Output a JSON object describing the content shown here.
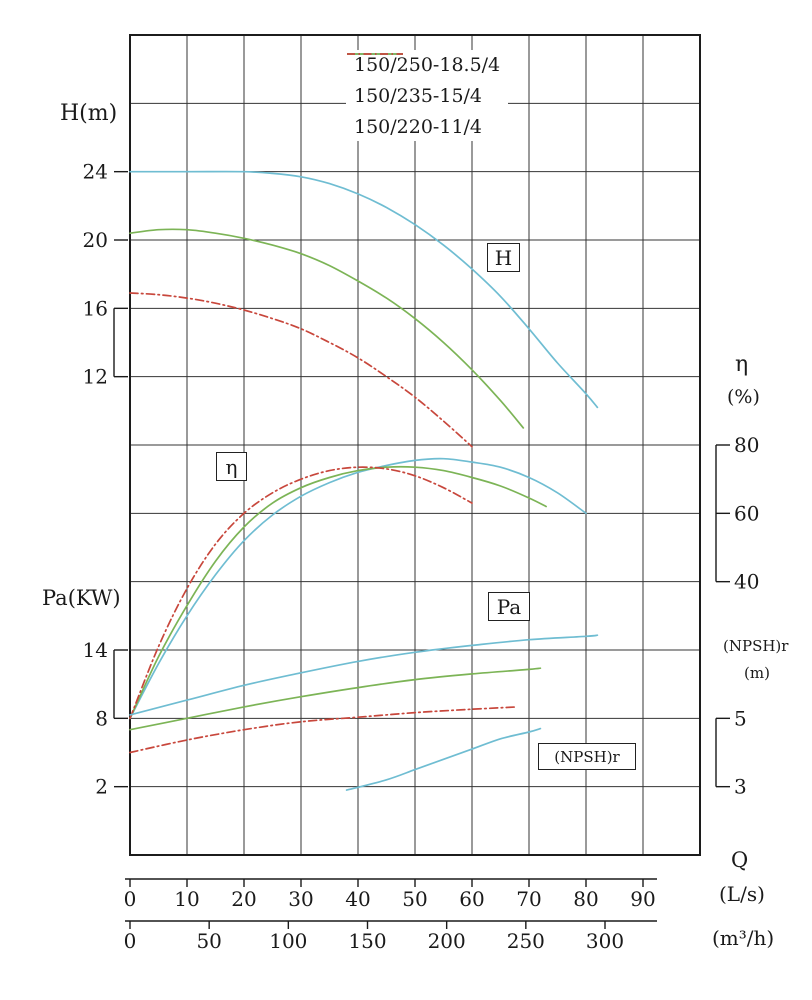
{
  "labels": {
    "h_axis": "H(m)",
    "pa_axis": "Pa(KW)",
    "eta": "η",
    "eta_unit": "(%)",
    "npshr": "(NPSH)r",
    "npsh_unit": "(m)",
    "q": "Q",
    "q_unit_ls": "(L/s)",
    "q_unit_m3h": "(m³/h)",
    "box_h": "H",
    "box_eta": "η",
    "box_pa": "Pa",
    "box_npshr": "(NPSH)r"
  },
  "legend": {
    "items": [
      {
        "label": "150/250-18.5/4",
        "color": "#6fbdd2",
        "dash": null
      },
      {
        "label": "150/235-15/4",
        "color": "#7cb456",
        "dash": null
      },
      {
        "label": "150/220-11/4",
        "color": "#c8473c",
        "dash": "8 3.5 1.5 3.5"
      }
    ]
  },
  "chart_data": {
    "type": "line",
    "legend_position": "top-center",
    "grid": {
      "rows": 12,
      "cols": 10
    },
    "x_axis": {
      "label": "Q",
      "max_ls": 100,
      "units": [
        {
          "name": "L/s",
          "to_ls": 1,
          "ticks": [
            0,
            10,
            20,
            30,
            40,
            50,
            60,
            70,
            80,
            90
          ]
        },
        {
          "name": "m³/h",
          "to_ls": 0.277778,
          "ticks": [
            0,
            50,
            100,
            150,
            200,
            250,
            300
          ]
        }
      ]
    },
    "y_axes": [
      {
        "id": "H",
        "label": "H(m)",
        "side": "left",
        "ticks": [
          24,
          20,
          16,
          12
        ],
        "top_value": 24,
        "top_div": 2,
        "units_per_div": 4,
        "bracket": [
          16,
          12
        ]
      },
      {
        "id": "eta",
        "label": "η(%)",
        "side": "right",
        "ticks": [
          80,
          60,
          40
        ],
        "top_value": 80,
        "top_div": 6,
        "units_per_div": 20,
        "bracket": [
          80,
          40
        ]
      },
      {
        "id": "Pa",
        "label": "Pa(KW)",
        "side": "left",
        "ticks": [
          14,
          8,
          2
        ],
        "top_value": 14,
        "top_div": 9,
        "units_per_div": 6,
        "bracket": [
          14,
          8
        ]
      },
      {
        "id": "NPSH",
        "label": "(NPSH)r (m)",
        "side": "right",
        "ticks": [
          5,
          3
        ],
        "top_value": 5,
        "top_div": 10,
        "units_per_div": 2,
        "bracket": [
          5,
          3
        ]
      }
    ],
    "series": [
      {
        "name": "H-150/250-18.5/4",
        "model": "150/250-18.5/4",
        "quantity": "H",
        "axis": "H",
        "color": "#6fbdd2",
        "dash": null,
        "points": [
          [
            0,
            24
          ],
          [
            10,
            24
          ],
          [
            20,
            24
          ],
          [
            25,
            23.9
          ],
          [
            30,
            23.7
          ],
          [
            35,
            23.3
          ],
          [
            40,
            22.7
          ],
          [
            45,
            21.9
          ],
          [
            50,
            20.9
          ],
          [
            55,
            19.7
          ],
          [
            60,
            18.3
          ],
          [
            65,
            16.7
          ],
          [
            70,
            14.8
          ],
          [
            75,
            12.8
          ],
          [
            80,
            11.0
          ],
          [
            82,
            10.2
          ]
        ]
      },
      {
        "name": "H-150/235-15/4",
        "model": "150/235-15/4",
        "quantity": "H",
        "axis": "H",
        "color": "#7cb456",
        "dash": null,
        "points": [
          [
            0,
            20.4
          ],
          [
            5,
            20.6
          ],
          [
            10,
            20.6
          ],
          [
            15,
            20.4
          ],
          [
            20,
            20.1
          ],
          [
            25,
            19.7
          ],
          [
            30,
            19.2
          ],
          [
            35,
            18.5
          ],
          [
            40,
            17.6
          ],
          [
            45,
            16.6
          ],
          [
            50,
            15.4
          ],
          [
            55,
            14.0
          ],
          [
            60,
            12.4
          ],
          [
            65,
            10.6
          ],
          [
            69,
            9.0
          ]
        ]
      },
      {
        "name": "H-150/220-11/4",
        "model": "150/220-11/4",
        "quantity": "H",
        "axis": "H",
        "color": "#c8473c",
        "dash": "8 3.5 1.5 3.5",
        "points": [
          [
            0,
            16.9
          ],
          [
            5,
            16.8
          ],
          [
            10,
            16.6
          ],
          [
            15,
            16.3
          ],
          [
            20,
            15.9
          ],
          [
            25,
            15.4
          ],
          [
            30,
            14.8
          ],
          [
            35,
            14.0
          ],
          [
            40,
            13.1
          ],
          [
            45,
            12.0
          ],
          [
            50,
            10.8
          ],
          [
            55,
            9.4
          ],
          [
            60,
            7.9
          ]
        ]
      },
      {
        "name": "eta-150/250-18.5/4",
        "model": "150/250-18.5/4",
        "quantity": "eta",
        "axis": "eta",
        "color": "#6fbdd2",
        "dash": null,
        "points": [
          [
            0,
            0
          ],
          [
            5,
            16
          ],
          [
            10,
            30
          ],
          [
            15,
            42
          ],
          [
            20,
            52
          ],
          [
            25,
            59.5
          ],
          [
            30,
            65
          ],
          [
            35,
            69
          ],
          [
            40,
            72
          ],
          [
            45,
            74
          ],
          [
            50,
            75.5
          ],
          [
            55,
            76
          ],
          [
            60,
            75
          ],
          [
            65,
            73.5
          ],
          [
            70,
            70.5
          ],
          [
            75,
            66
          ],
          [
            80,
            60
          ]
        ]
      },
      {
        "name": "eta-150/235-15/4",
        "model": "150/235-15/4",
        "quantity": "eta",
        "axis": "eta",
        "color": "#7cb456",
        "dash": null,
        "points": [
          [
            0,
            0
          ],
          [
            5,
            18
          ],
          [
            10,
            33
          ],
          [
            15,
            46
          ],
          [
            20,
            56
          ],
          [
            25,
            63
          ],
          [
            30,
            67.5
          ],
          [
            35,
            70.5
          ],
          [
            40,
            72.5
          ],
          [
            45,
            73.5
          ],
          [
            50,
            73.5
          ],
          [
            55,
            72.5
          ],
          [
            60,
            70.5
          ],
          [
            65,
            68
          ],
          [
            70,
            64.5
          ],
          [
            73,
            62
          ]
        ]
      },
      {
        "name": "eta-150/220-11/4",
        "model": "150/220-11/4",
        "quantity": "eta",
        "axis": "eta",
        "color": "#c8473c",
        "dash": "8 3.5 1.5 3.5",
        "points": [
          [
            0,
            0
          ],
          [
            5,
            21
          ],
          [
            10,
            38
          ],
          [
            15,
            51
          ],
          [
            20,
            60
          ],
          [
            25,
            66
          ],
          [
            30,
            70
          ],
          [
            35,
            72.5
          ],
          [
            40,
            73.5
          ],
          [
            45,
            73
          ],
          [
            50,
            71
          ],
          [
            55,
            67.5
          ],
          [
            60,
            63
          ]
        ]
      },
      {
        "name": "Pa-150/250-18.5/4",
        "model": "150/250-18.5/4",
        "quantity": "Pa",
        "axis": "Pa",
        "color": "#6fbdd2",
        "dash": null,
        "points": [
          [
            0,
            8.3
          ],
          [
            10,
            9.6
          ],
          [
            20,
            10.9
          ],
          [
            30,
            12.0
          ],
          [
            40,
            13.0
          ],
          [
            50,
            13.8
          ],
          [
            60,
            14.4
          ],
          [
            70,
            14.9
          ],
          [
            80,
            15.2
          ],
          [
            82,
            15.3
          ]
        ]
      },
      {
        "name": "Pa-150/235-15/4",
        "model": "150/235-15/4",
        "quantity": "Pa",
        "axis": "Pa",
        "color": "#7cb456",
        "dash": null,
        "points": [
          [
            0,
            7.0
          ],
          [
            10,
            8.0
          ],
          [
            20,
            9.0
          ],
          [
            30,
            9.9
          ],
          [
            40,
            10.7
          ],
          [
            50,
            11.4
          ],
          [
            60,
            11.9
          ],
          [
            70,
            12.3
          ],
          [
            72,
            12.4
          ]
        ]
      },
      {
        "name": "Pa-150/220-11/4",
        "model": "150/220-11/4",
        "quantity": "Pa",
        "axis": "Pa",
        "color": "#c8473c",
        "dash": "8 3.5 1.5 3.5",
        "points": [
          [
            0,
            5.0
          ],
          [
            10,
            6.1
          ],
          [
            20,
            7.0
          ],
          [
            30,
            7.7
          ],
          [
            40,
            8.1
          ],
          [
            50,
            8.5
          ],
          [
            60,
            8.8
          ],
          [
            68,
            9.0
          ]
        ]
      },
      {
        "name": "NPSHr-150/250-18.5/4",
        "model": "150/250-18.5/4",
        "quantity": "NPSHr",
        "axis": "NPSH",
        "color": "#6fbdd2",
        "dash": null,
        "points": [
          [
            38,
            2.9
          ],
          [
            45,
            3.2
          ],
          [
            50,
            3.5
          ],
          [
            55,
            3.8
          ],
          [
            60,
            4.1
          ],
          [
            65,
            4.4
          ],
          [
            70,
            4.6
          ],
          [
            72,
            4.7
          ]
        ]
      }
    ]
  }
}
